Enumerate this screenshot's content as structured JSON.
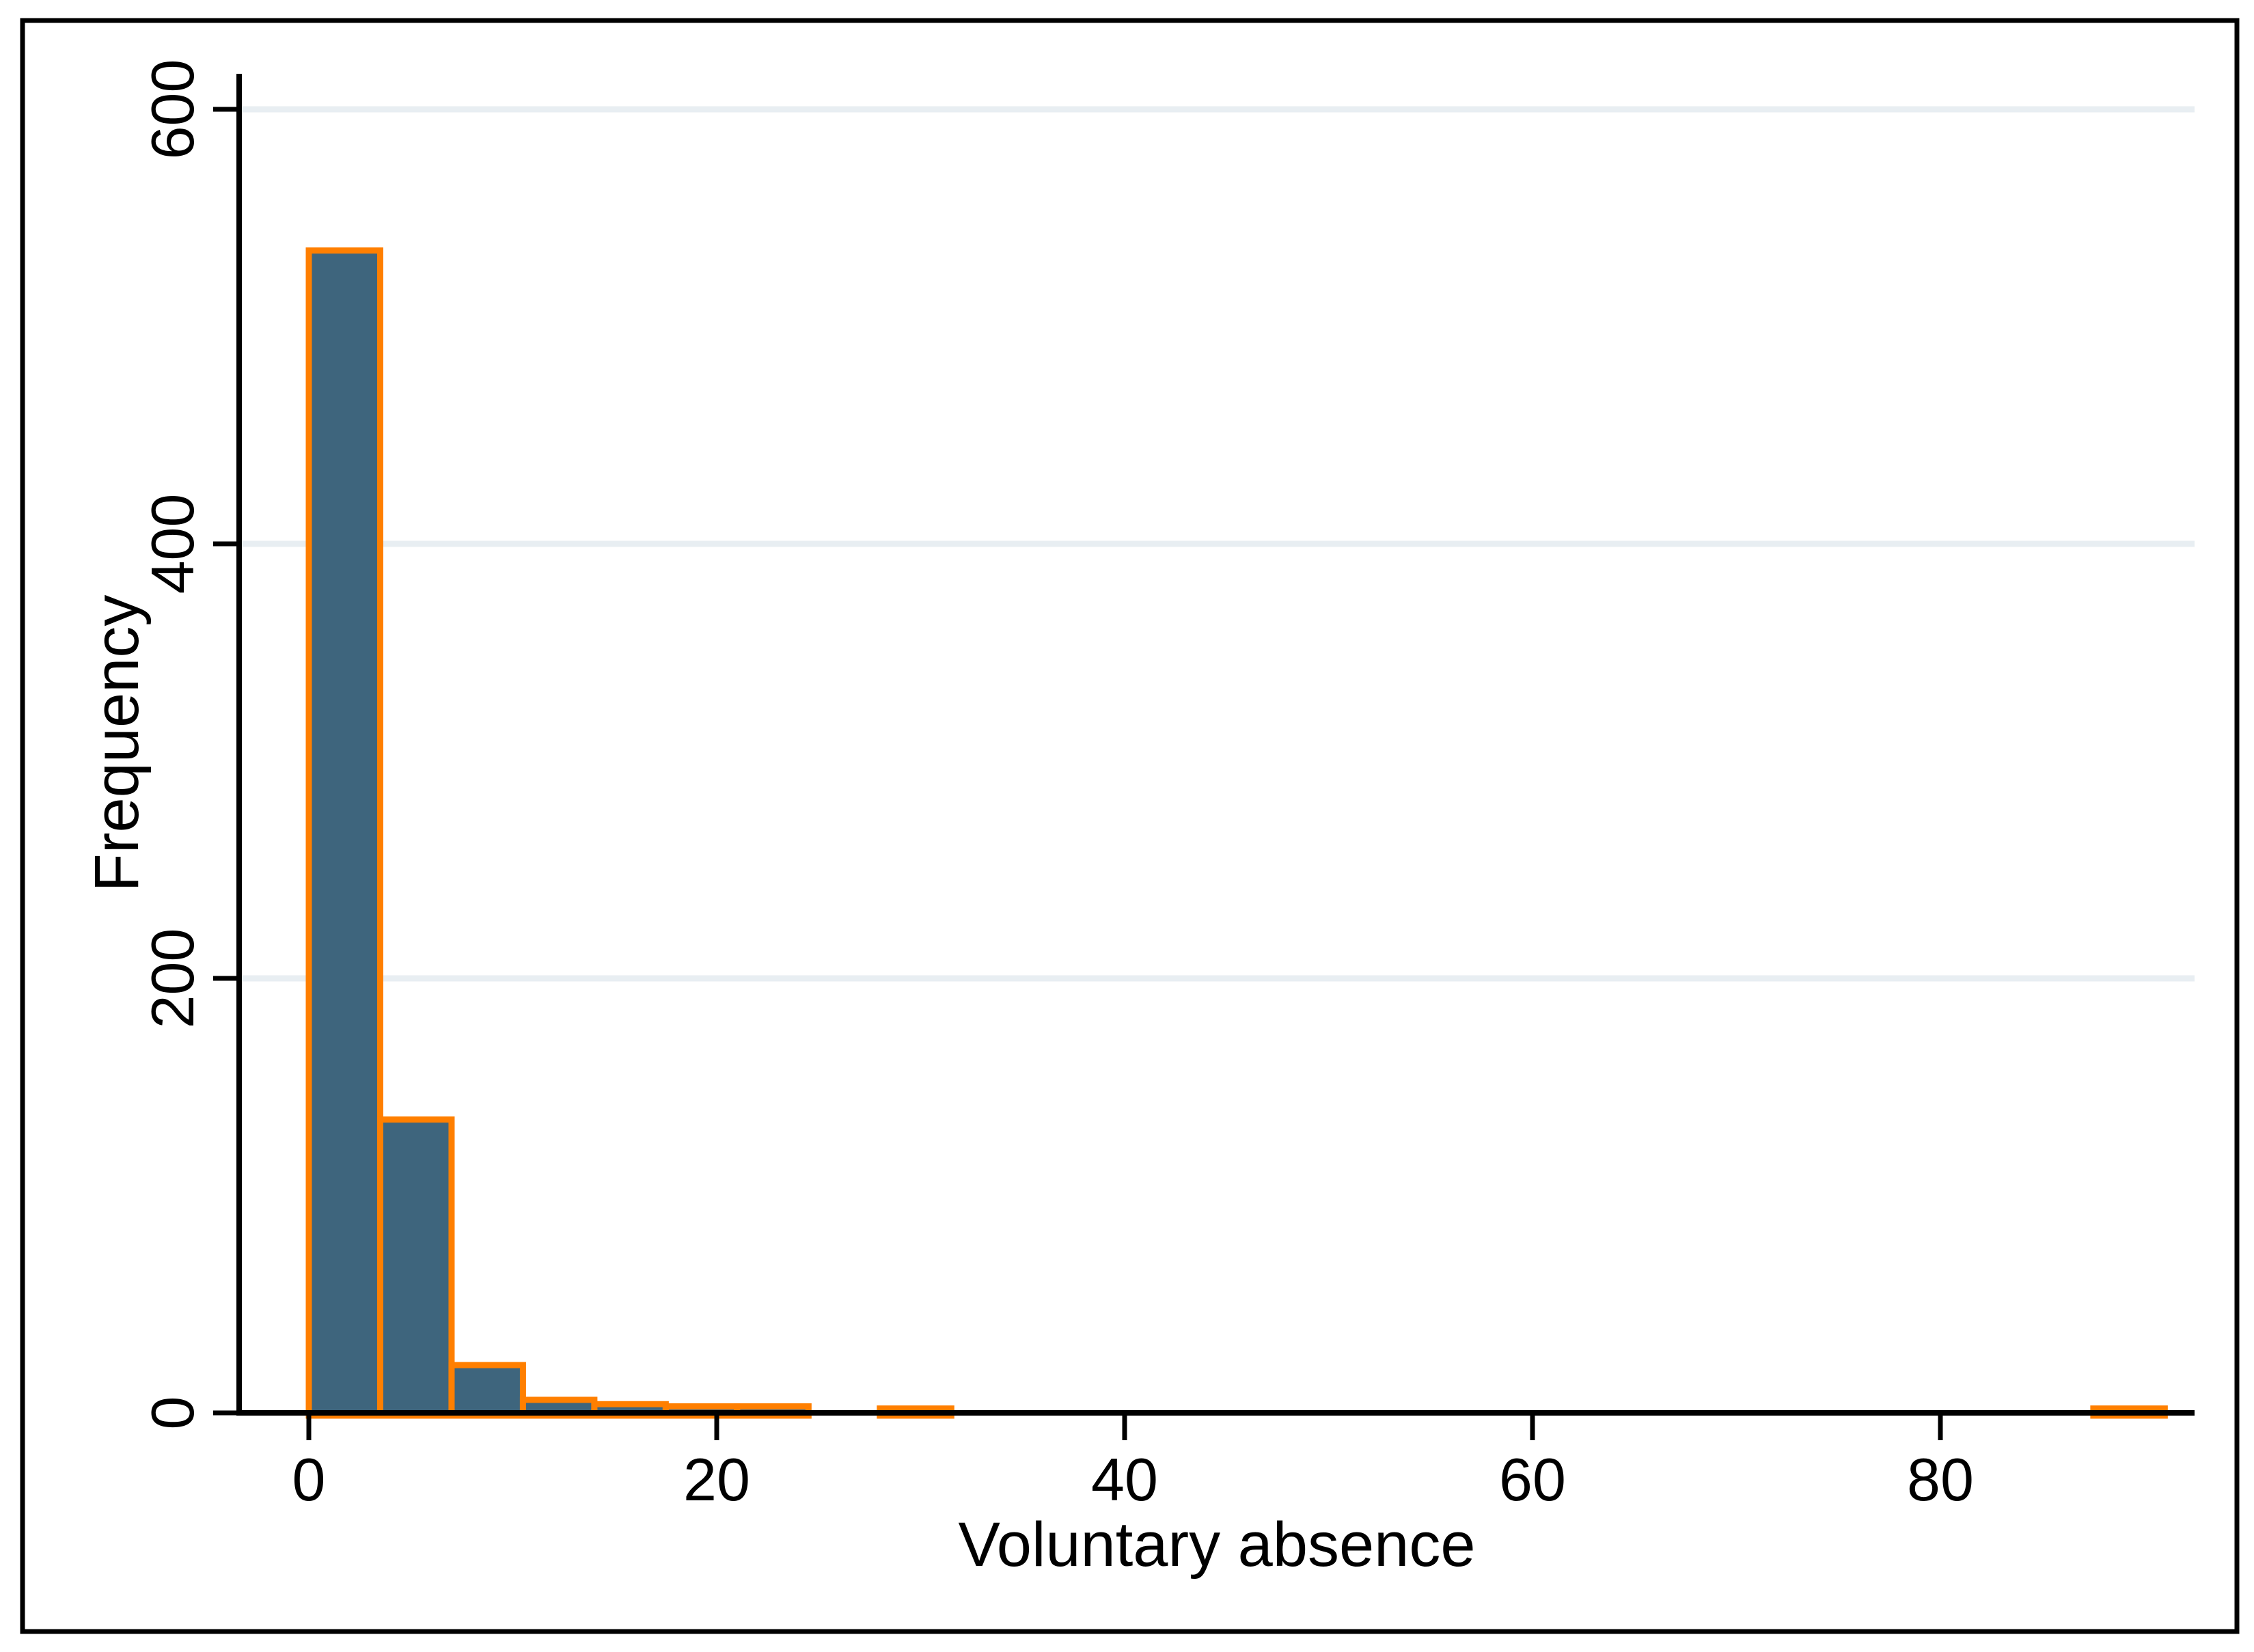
{
  "chart_data": {
    "type": "bar",
    "subtype": "histogram",
    "title": "",
    "xlabel": "Voluntary absence",
    "ylabel": "Frequency",
    "x_ticks": [
      0,
      20,
      40,
      60,
      80
    ],
    "y_ticks": [
      0,
      200,
      400,
      600
    ],
    "grid_values": [
      200,
      400,
      600
    ],
    "grid": "horizontal",
    "legend": null,
    "xlim": [
      -3.4,
      92.6
    ],
    "ylim": [
      0,
      616
    ],
    "bin_width": 3.5,
    "bin_starts": [
      0,
      3.5,
      7,
      10.5,
      14,
      17.5,
      21,
      24.5,
      28,
      31.5,
      35,
      38.5,
      42,
      45.5,
      49,
      52.5,
      56,
      59.5,
      63,
      66.5,
      70,
      73.5,
      77,
      80.5,
      84,
      87.5
    ],
    "counts": [
      535,
      135,
      22,
      6,
      4,
      3,
      3,
      0,
      2,
      0,
      0,
      0,
      0,
      0,
      0,
      0,
      0,
      0,
      0,
      0,
      0,
      0,
      0,
      0,
      0,
      2
    ],
    "colors": {
      "bar_fill": "#3E657D",
      "bar_stroke": "#FF7F00",
      "grid": "#E8EEF2",
      "axis": "#000000",
      "text": "#000000",
      "frame": "#000000",
      "background": "#FFFFFF"
    }
  }
}
